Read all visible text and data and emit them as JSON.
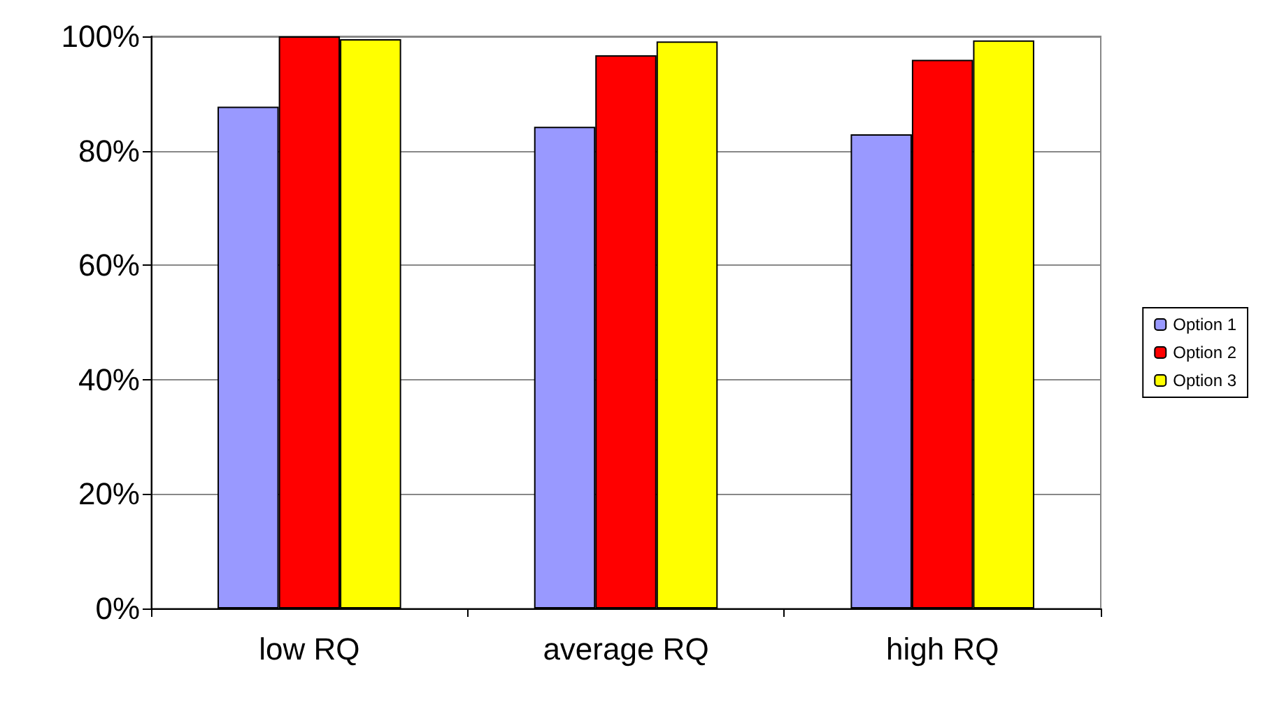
{
  "chart_data": {
    "type": "bar",
    "categories": [
      "low RQ",
      "average RQ",
      "high RQ"
    ],
    "series": [
      {
        "name": "Option 1",
        "color": "#9999ff",
        "values": [
          87.7,
          84.2,
          82.9
        ]
      },
      {
        "name": "Option 2",
        "color": "#ff0000",
        "values": [
          100,
          96.7,
          95.9
        ]
      },
      {
        "name": "Option 3",
        "color": "#ffff00",
        "values": [
          99.5,
          99.1,
          99.3
        ]
      }
    ],
    "ylim": [
      0,
      100
    ],
    "yticks": [
      {
        "value": 0,
        "label": "0%"
      },
      {
        "value": 20,
        "label": "20%"
      },
      {
        "value": 40,
        "label": "40%"
      },
      {
        "value": 60,
        "label": "60%"
      },
      {
        "value": 80,
        "label": "80%"
      },
      {
        "value": 100,
        "label": "100%"
      }
    ],
    "grid": "y",
    "legend": "right"
  }
}
